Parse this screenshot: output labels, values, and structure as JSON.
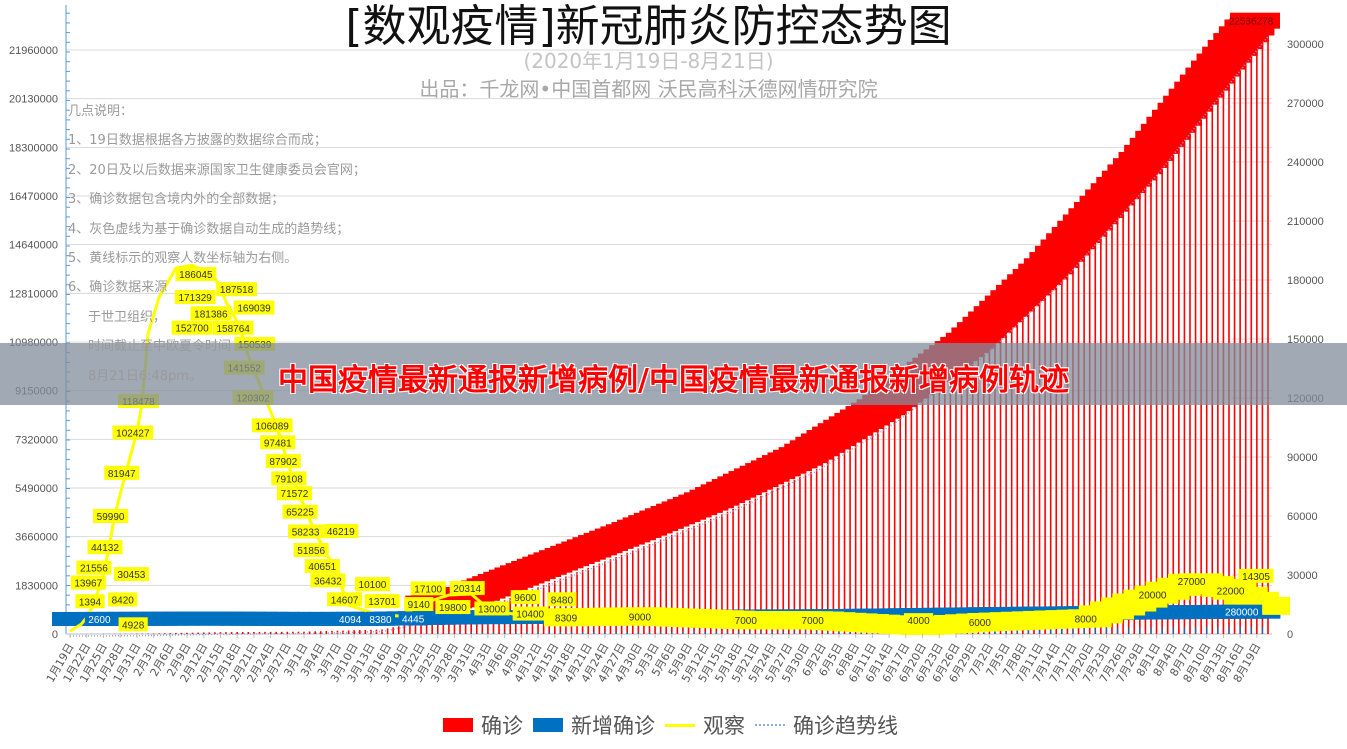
{
  "chart_data": {
    "type": "bar+line",
    "title": "[数观疫情]新冠肺炎防控态势图",
    "subtitle": "(2020年1月19日-8月21日)",
    "source": "出品：千龙网•中国首都网   沃民高科沃德网情研究院",
    "notes": [
      "几点说明：",
      "1、19日数据根据各方披露的数据综合而成；",
      "2、20日及以后数据来源国家卫生健康委员会官网；",
      "3、确诊数据包含境内外的全部数据；",
      "4、灰色虚线为基于确诊数据自动生成的趋势线；",
      "5、黄线标示的观察人数坐标轴为右侧。",
      "6、确诊数据来源",
      "于世卫组织，",
      "时间截止至中欧夏令时间",
      "8月21日6:48pm。"
    ],
    "left_axis": {
      "min": 0,
      "max": 21960000,
      "step": 1830000,
      "ticks": [
        "0",
        "1830000",
        "3660000",
        "5490000",
        "7320000",
        "9150000",
        "10980000",
        "12810000",
        "14640000",
        "16470000",
        "18300000",
        "20130000",
        "21960000"
      ]
    },
    "right_axis": {
      "min": 0,
      "max": 300000,
      "step": 30000,
      "ticks": [
        "0",
        "30000",
        "60000",
        "90000",
        "120000",
        "150000",
        "180000",
        "210000",
        "240000",
        "270000",
        "300000"
      ]
    },
    "x_start": "1/19",
    "x_end": "8/21",
    "x_tick_labels": [
      "1月19日",
      "1月22日",
      "1月25日",
      "1月28日",
      "1月31日",
      "2月3日",
      "2月6日",
      "2月9日",
      "2月12日",
      "2月15日",
      "2月18日",
      "2月21日",
      "2月24日",
      "2月27日",
      "3月1日",
      "3月4日",
      "3月7日",
      "3月10日",
      "3月13日",
      "3月16日",
      "3月19日",
      "3月22日",
      "3月25日",
      "3月28日",
      "3月31日",
      "4月3日",
      "4月6日",
      "4月9日",
      "4月12日",
      "4月15日",
      "4月18日",
      "4月21日",
      "4月24日",
      "4月27日",
      "4月30日",
      "5月3日",
      "5月6日",
      "5月9日",
      "5月12日",
      "5月15日",
      "5月18日",
      "5月21日",
      "5月24日",
      "5月27日",
      "5月30日",
      "6月2日",
      "6月5日",
      "6月8日",
      "6月11日",
      "6月14日",
      "6月17日",
      "6月20日",
      "6月23日",
      "6月26日",
      "6月29日",
      "7月2日",
      "7月5日",
      "7月8日",
      "7月11日",
      "7月14日",
      "7月17日",
      "7月20日",
      "7月23日",
      "7月26日",
      "7月29日",
      "8月1日",
      "8月4日",
      "8月7日",
      "8月10日",
      "8月13日",
      "8月16日",
      "8月19日"
    ],
    "series": [
      {
        "name": "确诊",
        "type": "bar",
        "axis": "left",
        "color": "#ff0000",
        "anchors": [
          [
            "1/19",
            282
          ],
          [
            "2/1",
            12000
          ],
          [
            "2/15",
            69000
          ],
          [
            "3/1",
            88000
          ],
          [
            "3/15",
            170000
          ],
          [
            "4/1",
            860000
          ],
          [
            "4/15",
            2000000
          ],
          [
            "5/1",
            3300000
          ],
          [
            "5/15",
            4500000
          ],
          [
            "6/1",
            6200000
          ],
          [
            "6/15",
            8000000
          ],
          [
            "7/1",
            10500000
          ],
          [
            "7/15",
            13300000
          ],
          [
            "8/1",
            17300000
          ],
          [
            "8/15",
            21000000
          ],
          [
            "8/21",
            22536278
          ]
        ],
        "last_label": "22536278"
      },
      {
        "name": "新增确诊",
        "type": "bar",
        "axis": "left",
        "color": "#0070c0",
        "anchors": [
          [
            "1/19",
            77
          ],
          [
            "1/25",
            2600
          ],
          [
            "2/12",
            15000
          ],
          [
            "3/1",
            1800
          ],
          [
            "3/10",
            4094
          ],
          [
            "3/14",
            8380
          ],
          [
            "3/20",
            30000
          ],
          [
            "4/1",
            70000
          ],
          [
            "5/1",
            85000
          ],
          [
            "6/1",
            100000
          ],
          [
            "7/1",
            180000
          ],
          [
            "8/1",
            250000
          ],
          [
            "8/19",
            280000
          ],
          [
            "8/21",
            270000
          ]
        ],
        "labels": [
          [
            "1/25",
            "2600"
          ],
          [
            "3/10",
            "4094"
          ],
          [
            "3/14",
            "8380"
          ],
          [
            "3/17",
            "4445"
          ],
          [
            "8/17",
            "280000"
          ]
        ]
      },
      {
        "name": "观察",
        "type": "line",
        "axis": "right",
        "color": "#ffff00",
        "points": [
          [
            "1/19",
            1394
          ],
          [
            "1/21",
            4928
          ],
          [
            "1/22",
            8420
          ],
          [
            "1/23",
            13967
          ],
          [
            "1/24",
            21556
          ],
          [
            "1/25",
            30453
          ],
          [
            "1/26",
            44132
          ],
          [
            "1/27",
            59990
          ],
          [
            "1/29",
            81947
          ],
          [
            "1/31",
            102427
          ],
          [
            "2/1",
            118478
          ],
          [
            "2/2",
            152700
          ],
          [
            "2/4",
            171329
          ],
          [
            "2/7",
            186045
          ],
          [
            "2/10",
            187518
          ],
          [
            "2/14",
            181386
          ],
          [
            "2/16",
            169039
          ],
          [
            "2/18",
            158764
          ],
          [
            "2/19",
            150539
          ],
          [
            "2/20",
            141552
          ],
          [
            "2/23",
            120302
          ],
          [
            "2/25",
            106089
          ],
          [
            "2/26",
            97481
          ],
          [
            "2/27",
            87902
          ],
          [
            "2/28",
            79108
          ],
          [
            "2/29",
            71572
          ],
          [
            "3/1",
            65225
          ],
          [
            "3/2",
            58233
          ],
          [
            "3/3",
            51856
          ],
          [
            "3/4",
            46219
          ],
          [
            "3/5",
            40651
          ],
          [
            "3/6",
            36432
          ],
          [
            "3/9",
            14607
          ],
          [
            "3/10",
            13701
          ],
          [
            "3/14",
            10100
          ],
          [
            "3/18",
            9140
          ],
          [
            "3/24",
            17100
          ],
          [
            "3/27",
            19800
          ],
          [
            "3/31",
            20314
          ],
          [
            "4/3",
            13000
          ],
          [
            "4/7",
            10400
          ],
          [
            "4/9",
            9600
          ],
          [
            "4/12",
            8309
          ],
          [
            "4/17",
            8480
          ],
          [
            "5/1",
            9000
          ],
          [
            "5/20",
            7000
          ],
          [
            "6/1",
            7000
          ],
          [
            "6/20",
            4000
          ],
          [
            "7/1",
            6000
          ],
          [
            "7/20",
            8000
          ],
          [
            "8/1",
            20000
          ],
          [
            "8/8",
            27000
          ],
          [
            "8/15",
            22000
          ],
          [
            "8/21",
            14305
          ]
        ]
      },
      {
        "name": "确诊趋势线",
        "type": "trendline",
        "axis": "left",
        "color": "#8ea9db"
      }
    ],
    "legend_position": "bottom"
  },
  "banner": {
    "text": "中国疫情最新通报新增病例/中国疫情最新通报新增病例轨迹"
  },
  "colors": {
    "confirmed": "#ff0000",
    "new": "#0070c0",
    "observe": "#ffff00",
    "trend": "#8ea9db"
  }
}
